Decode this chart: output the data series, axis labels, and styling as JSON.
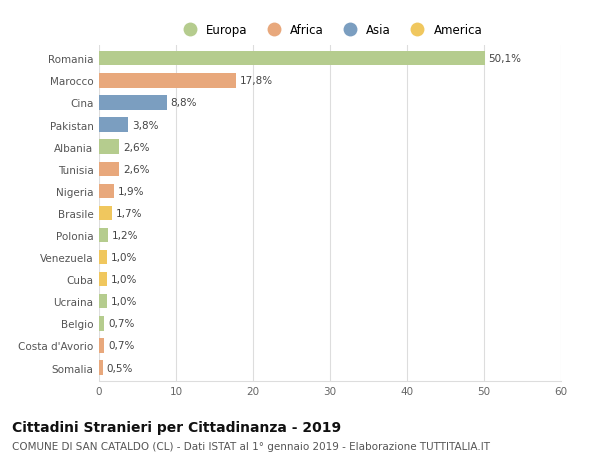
{
  "countries": [
    "Romania",
    "Marocco",
    "Cina",
    "Pakistan",
    "Albania",
    "Tunisia",
    "Nigeria",
    "Brasile",
    "Polonia",
    "Venezuela",
    "Cuba",
    "Ucraina",
    "Belgio",
    "Costa d'Avorio",
    "Somalia"
  ],
  "values": [
    50.1,
    17.8,
    8.8,
    3.8,
    2.6,
    2.6,
    1.9,
    1.7,
    1.2,
    1.0,
    1.0,
    1.0,
    0.7,
    0.7,
    0.5
  ],
  "labels": [
    "50,1%",
    "17,8%",
    "8,8%",
    "3,8%",
    "2,6%",
    "2,6%",
    "1,9%",
    "1,7%",
    "1,2%",
    "1,0%",
    "1,0%",
    "1,0%",
    "0,7%",
    "0,7%",
    "0,5%"
  ],
  "continents": [
    "Europa",
    "Africa",
    "Asia",
    "Asia",
    "Europa",
    "Africa",
    "Africa",
    "America",
    "Europa",
    "America",
    "America",
    "Europa",
    "Europa",
    "Africa",
    "Africa"
  ],
  "continent_colors": {
    "Europa": "#b5cc8e",
    "Africa": "#e8a87c",
    "Asia": "#7b9ec0",
    "America": "#f0c75e"
  },
  "legend_order": [
    "Europa",
    "Africa",
    "Asia",
    "America"
  ],
  "xlim": [
    0,
    60
  ],
  "xticks": [
    0,
    10,
    20,
    30,
    40,
    50,
    60
  ],
  "title": "Cittadini Stranieri per Cittadinanza - 2019",
  "subtitle": "COMUNE DI SAN CATALDO (CL) - Dati ISTAT al 1° gennaio 2019 - Elaborazione TUTTITALIA.IT",
  "title_fontsize": 10,
  "subtitle_fontsize": 7.5,
  "label_fontsize": 7.5,
  "tick_fontsize": 7.5,
  "legend_fontsize": 8.5,
  "background_color": "#ffffff",
  "grid_color": "#dddddd",
  "bar_height": 0.65
}
